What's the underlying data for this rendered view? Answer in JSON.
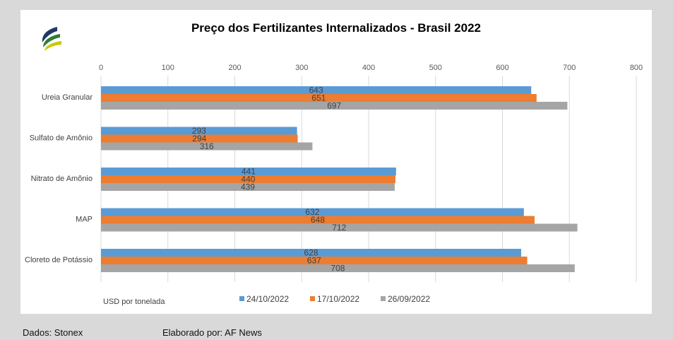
{
  "chart_data": {
    "type": "bar",
    "orientation": "horizontal",
    "title": "Preço dos Fertilizantes Internalizados  - Brasil 2022",
    "xlabel": "USD por tonelada",
    "ylabel": "",
    "xlim": [
      0,
      800
    ],
    "ticks": [
      "0",
      "100",
      "200",
      "300",
      "400",
      "500",
      "600",
      "700",
      "800"
    ],
    "grid": true,
    "legend_position": "bottom",
    "categories": [
      "Ureia Granular",
      "Sulfato de Amônio",
      "Nitrato de Amônio",
      "MAP",
      "Cloreto de Potássio"
    ],
    "series": [
      {
        "name": "24/10/2022",
        "color": "#5b9bd5",
        "values": [
          643,
          293,
          441,
          632,
          628
        ]
      },
      {
        "name": "17/10/2022",
        "color": "#ed7d31",
        "values": [
          651,
          294,
          440,
          648,
          637
        ]
      },
      {
        "name": "26/09/2022",
        "color": "#a5a5a5",
        "values": [
          697,
          316,
          439,
          712,
          708
        ]
      }
    ]
  },
  "logo": {
    "name": "leaf-logo-icon",
    "colors": [
      "#1f3864",
      "#2e7d32",
      "#c9c900"
    ]
  },
  "footer": {
    "source": "Dados: Stonex",
    "author": "Elaborado por: AF News"
  }
}
